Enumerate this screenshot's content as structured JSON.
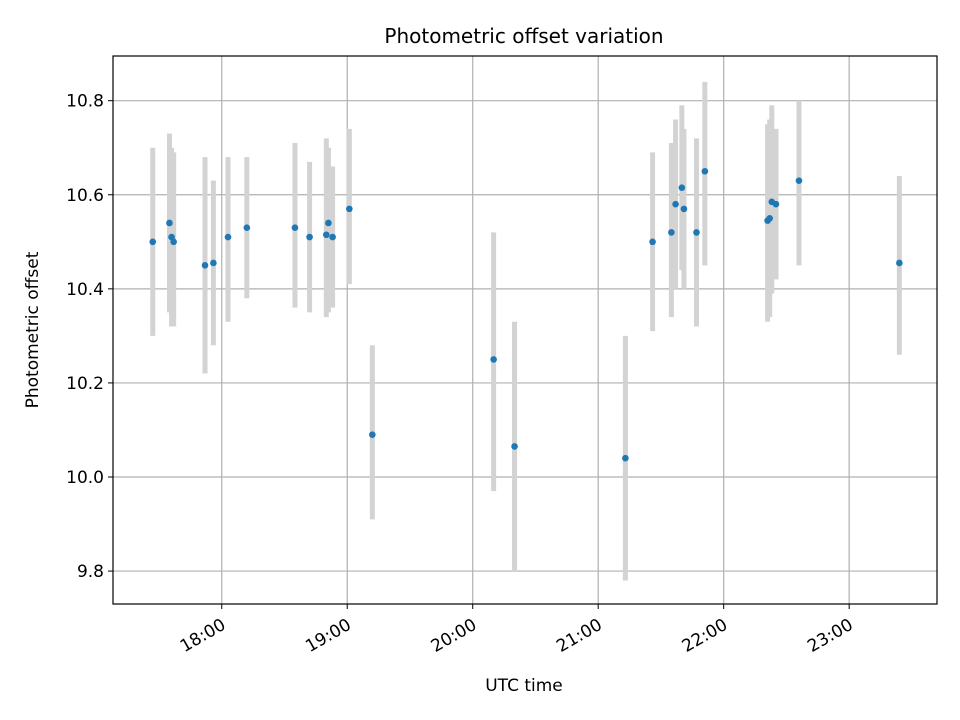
{
  "chart_data": {
    "type": "scatter",
    "title": "Photometric offset variation",
    "xlabel": "UTC time",
    "ylabel": "Photometric offset",
    "grid": true,
    "xlim": [
      "17:08",
      "23:42"
    ],
    "ylim": [
      9.73,
      10.895
    ],
    "x_ticks": [
      "18:00",
      "19:00",
      "20:00",
      "21:00",
      "22:00",
      "23:00"
    ],
    "y_ticks": [
      9.8,
      10.0,
      10.2,
      10.4,
      10.6,
      10.8
    ],
    "y_tick_labels": [
      "9.8",
      "10.0",
      "10.2",
      "10.4",
      "10.6",
      "10.8"
    ],
    "marker_color": "#1f77b4",
    "errorbar_color": "#d3d3d3",
    "series": [
      {
        "points": [
          {
            "x": "17:27",
            "y": 10.5,
            "lo": 10.3,
            "hi": 10.7
          },
          {
            "x": "17:35",
            "y": 10.54,
            "lo": 10.35,
            "hi": 10.73
          },
          {
            "x": "17:36",
            "y": 10.51,
            "lo": 10.32,
            "hi": 10.7
          },
          {
            "x": "17:37",
            "y": 10.5,
            "lo": 10.32,
            "hi": 10.69
          },
          {
            "x": "17:52",
            "y": 10.45,
            "lo": 10.22,
            "hi": 10.68
          },
          {
            "x": "17:56",
            "y": 10.455,
            "lo": 10.28,
            "hi": 10.63
          },
          {
            "x": "18:03",
            "y": 10.51,
            "lo": 10.33,
            "hi": 10.68
          },
          {
            "x": "18:12",
            "y": 10.53,
            "lo": 10.38,
            "hi": 10.68
          },
          {
            "x": "18:35",
            "y": 10.53,
            "lo": 10.36,
            "hi": 10.71
          },
          {
            "x": "18:42",
            "y": 10.51,
            "lo": 10.35,
            "hi": 10.67
          },
          {
            "x": "18:50",
            "y": 10.515,
            "lo": 10.34,
            "hi": 10.72
          },
          {
            "x": "18:51",
            "y": 10.54,
            "lo": 10.35,
            "hi": 10.7
          },
          {
            "x": "18:53",
            "y": 10.51,
            "lo": 10.36,
            "hi": 10.66
          },
          {
            "x": "19:01",
            "y": 10.57,
            "lo": 10.41,
            "hi": 10.74
          },
          {
            "x": "19:12",
            "y": 10.09,
            "lo": 9.91,
            "hi": 10.28
          },
          {
            "x": "20:10",
            "y": 10.25,
            "lo": 9.97,
            "hi": 10.52
          },
          {
            "x": "20:20",
            "y": 10.065,
            "lo": 9.8,
            "hi": 10.33
          },
          {
            "x": "21:13",
            "y": 10.04,
            "lo": 9.78,
            "hi": 10.3
          },
          {
            "x": "21:26",
            "y": 10.5,
            "lo": 10.31,
            "hi": 10.69
          },
          {
            "x": "21:35",
            "y": 10.52,
            "lo": 10.34,
            "hi": 10.71
          },
          {
            "x": "21:37",
            "y": 10.58,
            "lo": 10.4,
            "hi": 10.76
          },
          {
            "x": "21:40",
            "y": 10.615,
            "lo": 10.44,
            "hi": 10.79
          },
          {
            "x": "21:41",
            "y": 10.57,
            "lo": 10.4,
            "hi": 10.74
          },
          {
            "x": "21:47",
            "y": 10.52,
            "lo": 10.32,
            "hi": 10.72
          },
          {
            "x": "21:51",
            "y": 10.65,
            "lo": 10.45,
            "hi": 10.84
          },
          {
            "x": "22:21",
            "y": 10.545,
            "lo": 10.33,
            "hi": 10.75
          },
          {
            "x": "22:22",
            "y": 10.55,
            "lo": 10.34,
            "hi": 10.76
          },
          {
            "x": "22:23",
            "y": 10.585,
            "lo": 10.39,
            "hi": 10.79
          },
          {
            "x": "22:25",
            "y": 10.58,
            "lo": 10.42,
            "hi": 10.74
          },
          {
            "x": "22:36",
            "y": 10.63,
            "lo": 10.45,
            "hi": 10.8
          },
          {
            "x": "23:24",
            "y": 10.455,
            "lo": 10.26,
            "hi": 10.64
          }
        ]
      }
    ]
  }
}
